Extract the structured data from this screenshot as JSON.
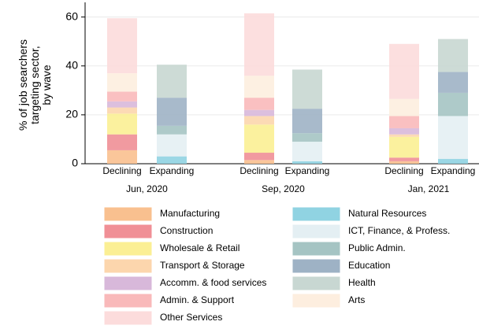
{
  "chart_data": {
    "type": "stacked_bar",
    "ylabel": [
      "% of job searchers",
      "targeting sector,",
      "by wave"
    ],
    "categories": [
      "Declining",
      "Expanding",
      "Declining",
      "Expanding",
      "Declining",
      "Expanding"
    ],
    "groups": [
      "Jun, 2020",
      "Sep, 2020",
      "Jan, 2021"
    ],
    "ylim": [
      0,
      66
    ],
    "yticks": [
      0,
      20,
      40,
      60
    ],
    "grid": true,
    "series": [
      {
        "name": "Manufacturing",
        "color": "#f9c08f",
        "values": [
          5.5,
          null,
          1.5,
          null,
          1,
          null
        ]
      },
      {
        "name": "Construction",
        "color": "#f08f96",
        "values": [
          6.5,
          null,
          3,
          null,
          1.5,
          null
        ]
      },
      {
        "name": "Wholesale & Retail",
        "color": "#fbef94",
        "values": [
          8.5,
          null,
          11.5,
          null,
          8.5,
          null
        ]
      },
      {
        "name": "Transport & Storage",
        "color": "#fcd6ad",
        "values": [
          2.5,
          null,
          3.5,
          null,
          1,
          null
        ]
      },
      {
        "name": "Accomm. & food services",
        "color": "#d8b8da",
        "values": [
          2.5,
          null,
          2.5,
          null,
          2.5,
          null
        ]
      },
      {
        "name": "Admin. & Support",
        "color": "#f9b9ba",
        "values": [
          4,
          null,
          5,
          null,
          5,
          null
        ]
      },
      {
        "name": "Arts",
        "color": "#fdeedf",
        "values": [
          7.5,
          null,
          9,
          null,
          7,
          null
        ]
      },
      {
        "name": "Other Services",
        "color": "#fcdcdc",
        "values": [
          22.5,
          null,
          25.5,
          null,
          22.5,
          null
        ]
      },
      {
        "name": "Natural Resources",
        "color": "#90d3e2",
        "values": [
          null,
          3,
          null,
          1,
          null,
          2
        ]
      },
      {
        "name": "ICT, Finance, & Profess.",
        "color": "#e4eff3",
        "values": [
          null,
          9,
          null,
          8,
          null,
          17.5
        ]
      },
      {
        "name": "Public Admin.",
        "color": "#a5c4c3",
        "values": [
          null,
          3.5,
          null,
          3.5,
          null,
          9.5
        ]
      },
      {
        "name": "Education",
        "color": "#9eb2c5",
        "values": [
          null,
          11.5,
          null,
          10,
          null,
          8.5
        ]
      },
      {
        "name": "Health",
        "color": "#c8d7d2",
        "values": [
          null,
          13.5,
          null,
          16,
          null,
          13.5
        ]
      }
    ]
  }
}
